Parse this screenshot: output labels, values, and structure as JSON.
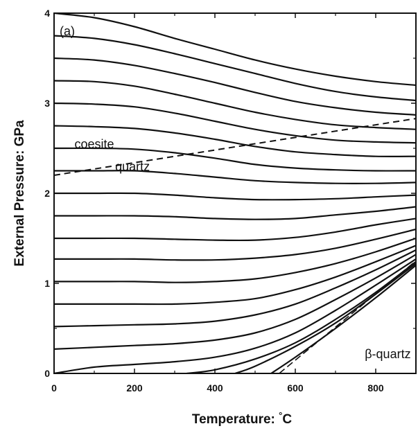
{
  "chart_data": {
    "type": "line",
    "title": "",
    "panel_label": "(a)",
    "xlabel": "Temperature: ",
    "xlabel_unit": "°C",
    "ylabel": "External Pressure: GPa",
    "xlim": [
      0,
      900
    ],
    "ylim": [
      0,
      4
    ],
    "x_ticks": [
      0,
      200,
      400,
      600,
      800
    ],
    "y_ticks": [
      0,
      1,
      2,
      3,
      4
    ],
    "x_tick_labels": [
      "0",
      "200",
      "400",
      "600",
      "800"
    ],
    "y_tick_labels": [
      "0",
      "1",
      "2",
      "3",
      "4"
    ],
    "grid": false,
    "legend": "none",
    "annotations": [
      {
        "text": "coesite",
        "x": 100,
        "y": 2.5
      },
      {
        "text": "quartz",
        "x": 195,
        "y": 2.25
      },
      {
        "text": "β-quartz",
        "x": 830,
        "y": 0.17
      }
    ],
    "phase_boundary": {
      "style": "dashed",
      "x": [
        0,
        900
      ],
      "y": [
        2.2,
        2.83
      ]
    },
    "alpha_beta_boundary": {
      "style": "dashed",
      "x": [
        560,
        900
      ],
      "y": [
        0.0,
        1.25
      ]
    },
    "series": [
      {
        "x": [
          0,
          100,
          200,
          300,
          400,
          500,
          600,
          700,
          800,
          900
        ],
        "y": [
          4.0,
          3.95,
          3.85,
          3.72,
          3.6,
          3.48,
          3.38,
          3.3,
          3.24,
          3.2
        ]
      },
      {
        "x": [
          0,
          100,
          200,
          300,
          400,
          500,
          600,
          700,
          800,
          900
        ],
        "y": [
          3.75,
          3.72,
          3.65,
          3.55,
          3.44,
          3.33,
          3.22,
          3.13,
          3.07,
          3.03
        ]
      },
      {
        "x": [
          0,
          100,
          200,
          300,
          400,
          500,
          600,
          700,
          800,
          900
        ],
        "y": [
          3.5,
          3.48,
          3.42,
          3.33,
          3.23,
          3.12,
          3.02,
          2.95,
          2.9,
          2.87
        ]
      },
      {
        "x": [
          0,
          100,
          200,
          300,
          400,
          500,
          600,
          700,
          800,
          900
        ],
        "y": [
          3.25,
          3.24,
          3.19,
          3.1,
          3.0,
          2.9,
          2.82,
          2.76,
          2.73,
          2.71
        ]
      },
      {
        "x": [
          0,
          100,
          200,
          300,
          400,
          500,
          600,
          700,
          800,
          900
        ],
        "y": [
          3.0,
          2.99,
          2.96,
          2.89,
          2.8,
          2.71,
          2.64,
          2.59,
          2.57,
          2.56
        ]
      },
      {
        "x": [
          0,
          100,
          200,
          300,
          400,
          500,
          600,
          700,
          800,
          900
        ],
        "y": [
          2.75,
          2.74,
          2.72,
          2.67,
          2.6,
          2.52,
          2.46,
          2.43,
          2.41,
          2.41
        ]
      },
      {
        "x": [
          0,
          100,
          200,
          300,
          400,
          500,
          600,
          700,
          800,
          900
        ],
        "y": [
          2.5,
          2.5,
          2.49,
          2.45,
          2.39,
          2.32,
          2.28,
          2.26,
          2.25,
          2.25
        ]
      },
      {
        "x": [
          0,
          100,
          200,
          300,
          400,
          500,
          600,
          700,
          800,
          900
        ],
        "y": [
          2.25,
          2.25,
          2.25,
          2.22,
          2.18,
          2.14,
          2.12,
          2.11,
          2.11,
          2.12
        ]
      },
      {
        "x": [
          0,
          100,
          200,
          300,
          400,
          500,
          600,
          700,
          800,
          900
        ],
        "y": [
          2.0,
          2.0,
          2.0,
          1.98,
          1.95,
          1.93,
          1.93,
          1.94,
          1.96,
          1.98
        ]
      },
      {
        "x": [
          0,
          100,
          200,
          300,
          400,
          500,
          600,
          700,
          800,
          900
        ],
        "y": [
          1.75,
          1.75,
          1.75,
          1.74,
          1.72,
          1.71,
          1.72,
          1.76,
          1.8,
          1.85
        ]
      },
      {
        "x": [
          0,
          100,
          200,
          300,
          400,
          500,
          600,
          700,
          800,
          900
        ],
        "y": [
          1.5,
          1.5,
          1.5,
          1.49,
          1.48,
          1.48,
          1.51,
          1.57,
          1.65,
          1.72
        ]
      },
      {
        "x": [
          0,
          100,
          200,
          300,
          400,
          500,
          600,
          700,
          800,
          900
        ],
        "y": [
          1.27,
          1.27,
          1.27,
          1.26,
          1.26,
          1.28,
          1.32,
          1.39,
          1.49,
          1.6
        ]
      },
      {
        "x": [
          0,
          100,
          200,
          300,
          400,
          500,
          600,
          700,
          800,
          900
        ],
        "y": [
          1.02,
          1.02,
          1.02,
          1.01,
          1.02,
          1.05,
          1.12,
          1.22,
          1.35,
          1.5
        ]
      },
      {
        "x": [
          0,
          100,
          200,
          300,
          400,
          500,
          600,
          700,
          800,
          900
        ],
        "y": [
          0.77,
          0.77,
          0.77,
          0.77,
          0.79,
          0.83,
          0.93,
          1.07,
          1.24,
          1.42
        ]
      },
      {
        "x": [
          0,
          100,
          200,
          300,
          400,
          500,
          600,
          700,
          800,
          900
        ],
        "y": [
          0.52,
          0.53,
          0.54,
          0.55,
          0.58,
          0.65,
          0.77,
          0.95,
          1.15,
          1.37
        ]
      },
      {
        "x": [
          0,
          100,
          200,
          300,
          400,
          500,
          600,
          700,
          800,
          900
        ],
        "y": [
          0.27,
          0.29,
          0.31,
          0.33,
          0.37,
          0.45,
          0.6,
          0.82,
          1.06,
          1.32
        ]
      },
      {
        "x": [
          0,
          100,
          200,
          300,
          400,
          500,
          600,
          700,
          800,
          900
        ],
        "y": [
          0.0,
          0.07,
          0.1,
          0.13,
          0.18,
          0.28,
          0.45,
          0.7,
          0.98,
          1.27
        ]
      },
      {
        "x": [
          330,
          400,
          500,
          600,
          700,
          800,
          900
        ],
        "y": [
          0.0,
          0.04,
          0.16,
          0.34,
          0.6,
          0.9,
          1.24
        ]
      },
      {
        "x": [
          450,
          500,
          600,
          700,
          800,
          900
        ],
        "y": [
          0.0,
          0.08,
          0.3,
          0.56,
          0.88,
          1.22
        ]
      },
      {
        "x": [
          540,
          600,
          700,
          800,
          900
        ],
        "y": [
          0.0,
          0.18,
          0.5,
          0.84,
          1.2
        ]
      }
    ]
  }
}
